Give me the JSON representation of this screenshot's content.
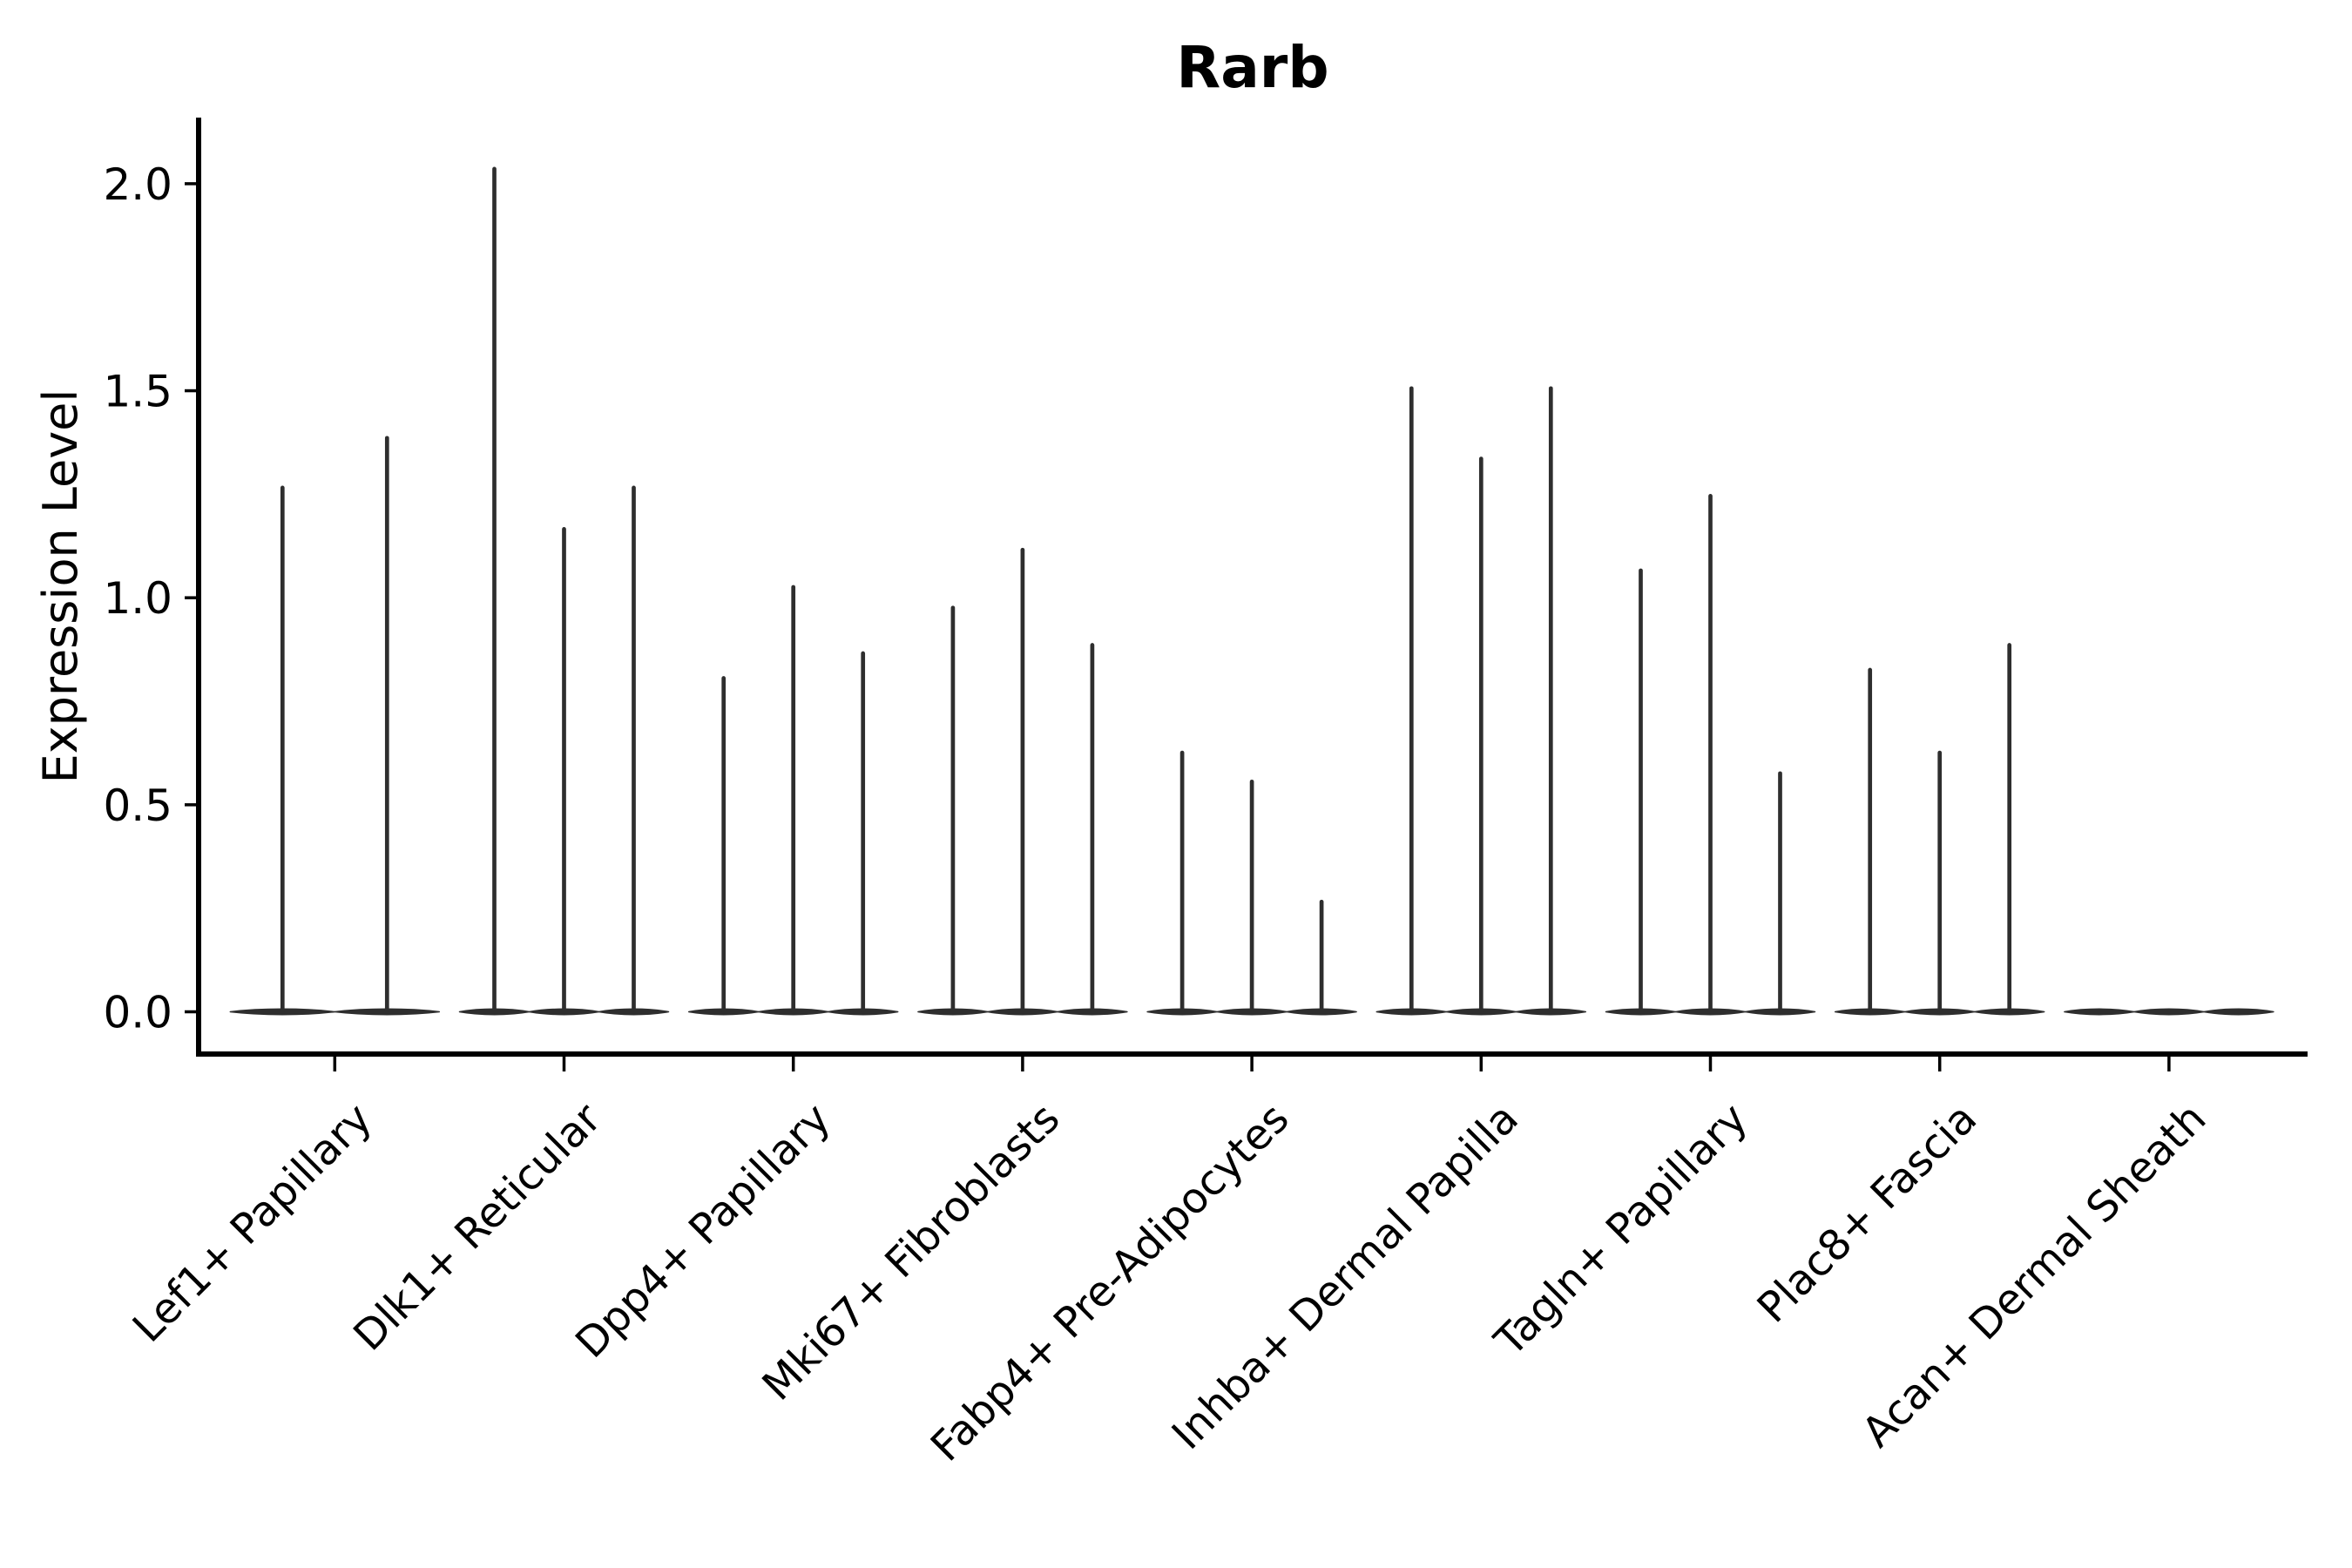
{
  "figure": {
    "background": "#ffffff"
  },
  "chart_data": {
    "type": "violin",
    "title": "Rarb",
    "xlabel": "",
    "ylabel": "Expression Level",
    "grid": false,
    "legend": "none",
    "ylim": [
      -0.11,
      2.16
    ],
    "yticks": [
      {
        "value": 0.0,
        "label": "0.0"
      },
      {
        "value": 0.5,
        "label": "0.5"
      },
      {
        "value": 1.0,
        "label": "1.0"
      },
      {
        "value": 1.5,
        "label": "1.5"
      },
      {
        "value": 2.0,
        "label": "2.0"
      }
    ],
    "categories": [
      "Lef1+ Papillary",
      "Dlk1+ Reticular",
      "Dpp4+ Papillary",
      "Mki67+ Fibroblasts",
      "Fabp4+ Pre-Adipocytes",
      "Inhba+ Dermal Papilla",
      "Tagln+ Papillary",
      "Plac8+ Fascia",
      "Acan+ Dermal Sheath"
    ],
    "groups": [
      {
        "label": "Lef1+ Papillary",
        "violin_max_values": [
          1.27,
          1.39
        ]
      },
      {
        "label": "Dlk1+ Reticular",
        "violin_max_values": [
          2.04,
          1.17,
          1.27
        ]
      },
      {
        "label": "Dpp4+ Papillary",
        "violin_max_values": [
          0.81,
          1.03,
          0.87
        ]
      },
      {
        "label": "Mki67+ Fibroblasts",
        "violin_max_values": [
          0.98,
          1.12,
          0.89
        ]
      },
      {
        "label": "Fabp4+ Pre-Adipocytes",
        "violin_max_values": [
          0.63,
          0.56,
          0.27
        ]
      },
      {
        "label": "Inhba+ Dermal Papilla",
        "violin_max_values": [
          1.51,
          1.34,
          1.51
        ]
      },
      {
        "label": "Tagln+ Papillary",
        "violin_max_values": [
          1.07,
          1.25,
          0.58
        ]
      },
      {
        "label": "Plac8+ Fascia",
        "violin_max_values": [
          0.83,
          0.63,
          0.89
        ]
      },
      {
        "label": "Acan+ Dermal Sheath",
        "violin_max_values": [
          0.0,
          0.0,
          0.0
        ]
      }
    ],
    "description": "Violin plot of Rarb expression; most density at 0 (flat bar) with thin spikes up to each violin's max expression value.",
    "colors": {
      "violin": "#2e2e2e",
      "axis": "#000000",
      "text": "#000000",
      "background": "#ffffff"
    }
  }
}
